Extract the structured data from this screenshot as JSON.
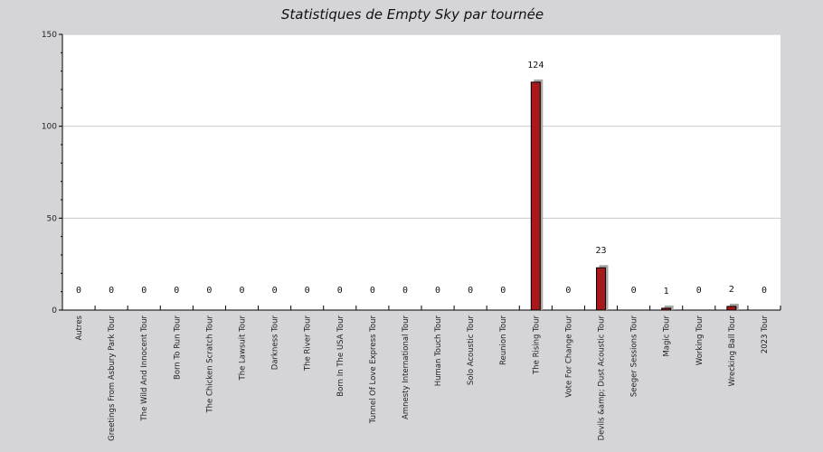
{
  "chart_data": {
    "type": "bar",
    "title": "Statistiques de Empty Sky par tournée",
    "xlabel": "",
    "ylabel": "",
    "ylim": [
      0,
      150
    ],
    "yticks": [
      0,
      50,
      100,
      150
    ],
    "grid": true,
    "colors": {
      "bar": "#a8191b",
      "shadow": "#a9a9a9",
      "plot_bg": "#ffffff",
      "page_bg": "#d5d4d9",
      "grid": "#cccccc"
    },
    "categories": [
      "Autres",
      "Greetings From Asbury Park Tour",
      "The Wild And Innocent Tour",
      "Born To Run Tour",
      "The Chicken Scratch Tour",
      "The Lawsuit Tour",
      "Darkness Tour",
      "The River Tour",
      "Born In The USA Tour",
      "Tunnel Of Love Express Tour",
      "Amnesty International Tour",
      "Human Touch Tour",
      "Solo Acoustic Tour",
      "Reunion Tour",
      "The Rising Tour",
      "Vote For Change Tour",
      "Devils &amp; Dust Acoustic Tour",
      "Seeger Sessions Tour",
      "Magic Tour",
      "Working Tour",
      "Wrecking Ball Tour",
      "2023 Tour"
    ],
    "values": [
      0,
      0,
      0,
      0,
      0,
      0,
      0,
      0,
      0,
      0,
      0,
      0,
      0,
      0,
      124,
      0,
      23,
      0,
      1,
      0,
      2,
      0
    ]
  }
}
